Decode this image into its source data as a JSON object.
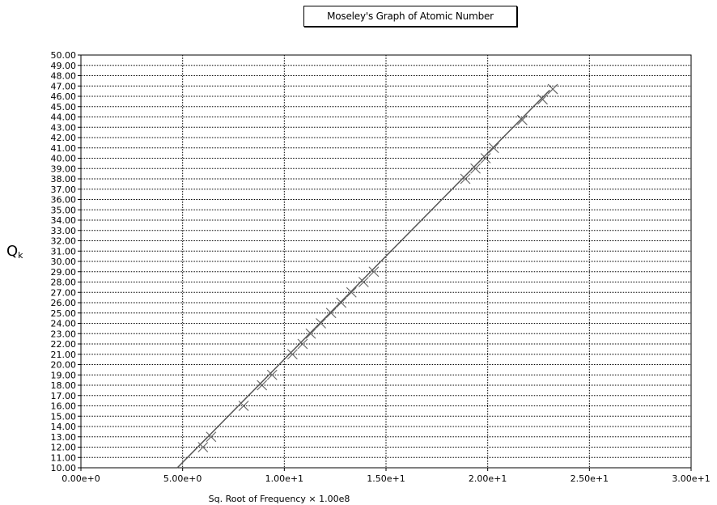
{
  "chart_data": {
    "type": "scatter",
    "title": "Moseley's Graph of Atomic Number",
    "xlabel": "Sq. Root of Frequency × 1.00e8",
    "ylabel": "Q",
    "ylabel_subscript": "k",
    "xlim": [
      0,
      30
    ],
    "ylim": [
      10,
      50
    ],
    "x_ticks": [
      0,
      5,
      10,
      15,
      20,
      25,
      30
    ],
    "x_tick_labels": [
      "0.00e+0",
      "5.00e+0",
      "1.00e+1",
      "1.50e+1",
      "2.00e+1",
      "2.50e+1",
      "3.00e+1"
    ],
    "y_ticks": [
      10,
      11,
      12,
      13,
      14,
      15,
      16,
      17,
      18,
      19,
      20,
      21,
      22,
      23,
      24,
      25,
      26,
      27,
      28,
      29,
      30,
      31,
      32,
      33,
      34,
      35,
      36,
      37,
      38,
      39,
      40,
      41,
      42,
      43,
      44,
      45,
      46,
      47,
      48,
      49,
      50
    ],
    "y_tick_labels": [
      "10.00",
      "11.00",
      "12.00",
      "13.00",
      "14.00",
      "15.00",
      "16.00",
      "17.00",
      "18.00",
      "19.00",
      "20.00",
      "21.00",
      "22.00",
      "23.00",
      "24.00",
      "25.00",
      "26.00",
      "27.00",
      "28.00",
      "29.00",
      "30.00",
      "31.00",
      "32.00",
      "33.00",
      "34.00",
      "35.00",
      "36.00",
      "37.00",
      "38.00",
      "39.00",
      "40.00",
      "41.00",
      "42.00",
      "43.00",
      "44.00",
      "45.00",
      "46.00",
      "47.00",
      "48.00",
      "49.00",
      "50.00"
    ],
    "grid": true,
    "series": [
      {
        "marker": "x",
        "points": [
          [
            6.0,
            12
          ],
          [
            6.4,
            13
          ],
          [
            8.0,
            16
          ],
          [
            8.9,
            18
          ],
          [
            9.4,
            19
          ],
          [
            10.4,
            21
          ],
          [
            10.9,
            22
          ],
          [
            11.3,
            23
          ],
          [
            11.8,
            24
          ],
          [
            12.3,
            25
          ],
          [
            12.8,
            26
          ],
          [
            13.3,
            27
          ],
          [
            13.9,
            28
          ],
          [
            14.4,
            29
          ],
          [
            18.9,
            38
          ],
          [
            19.4,
            39
          ],
          [
            19.9,
            40
          ],
          [
            20.3,
            41
          ],
          [
            21.7,
            43.7
          ],
          [
            22.7,
            45.7
          ],
          [
            23.2,
            46.7
          ]
        ]
      }
    ],
    "fit_line": {
      "x": [
        4.74,
        23.05
      ],
      "y": [
        10,
        46.6
      ]
    },
    "colors": {
      "line": "#555555",
      "marker": "#666666",
      "grid": "#000000"
    }
  }
}
